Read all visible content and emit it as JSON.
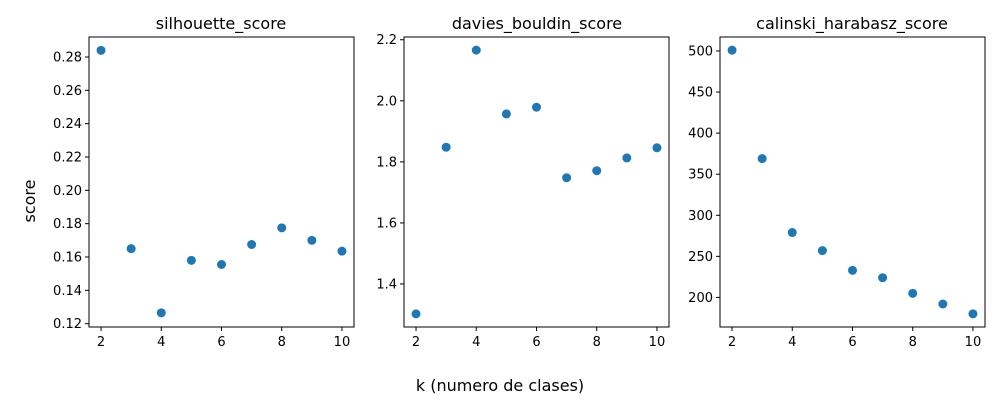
{
  "figure": {
    "ylabel": "score",
    "xlabel": "k (numero de clases)",
    "marker_color": "#1f77b4"
  },
  "chart_data": [
    {
      "type": "scatter",
      "title": "silhouette_score",
      "x": [
        2,
        3,
        4,
        5,
        6,
        7,
        8,
        9,
        10
      ],
      "y": [
        0.284,
        0.165,
        0.1265,
        0.158,
        0.1555,
        0.1675,
        0.1775,
        0.17,
        0.1635
      ],
      "xlim": [
        1.6,
        10.4
      ],
      "ylim": [
        0.118,
        0.292
      ],
      "xticks": [
        2,
        4,
        6,
        8,
        10
      ],
      "yticks": [
        0.12,
        0.14,
        0.16,
        0.18,
        0.2,
        0.22,
        0.24,
        0.26,
        0.28
      ],
      "ytick_labels": [
        "0.12",
        "0.14",
        "0.16",
        "0.18",
        "0.20",
        "0.22",
        "0.24",
        "0.26",
        "0.28"
      ],
      "grid": false
    },
    {
      "type": "scatter",
      "title": "davies_bouldin_score",
      "x": [
        2,
        3,
        4,
        5,
        6,
        7,
        8,
        9,
        10
      ],
      "y": [
        1.302,
        1.848,
        2.166,
        1.957,
        1.979,
        1.748,
        1.771,
        1.813,
        1.846
      ],
      "xlim": [
        1.6,
        10.4
      ],
      "ylim": [
        1.259,
        2.209
      ],
      "xticks": [
        2,
        4,
        6,
        8,
        10
      ],
      "yticks": [
        1.4,
        1.6,
        1.8,
        2.0,
        2.2
      ],
      "ytick_labels": [
        "1.4",
        "1.6",
        "1.8",
        "2.0",
        "2.2"
      ],
      "grid": false
    },
    {
      "type": "scatter",
      "title": "calinski_harabasz_score",
      "x": [
        2,
        3,
        4,
        5,
        6,
        7,
        8,
        9,
        10
      ],
      "y": [
        501,
        369,
        279,
        257,
        233,
        224,
        205,
        192,
        180
      ],
      "xlim": [
        1.6,
        10.4
      ],
      "ylim": [
        164,
        517
      ],
      "xticks": [
        2,
        4,
        6,
        8,
        10
      ],
      "yticks": [
        200,
        250,
        300,
        350,
        400,
        450,
        500
      ],
      "ytick_labels": [
        "200",
        "250",
        "300",
        "350",
        "400",
        "450",
        "500"
      ],
      "grid": false
    }
  ]
}
